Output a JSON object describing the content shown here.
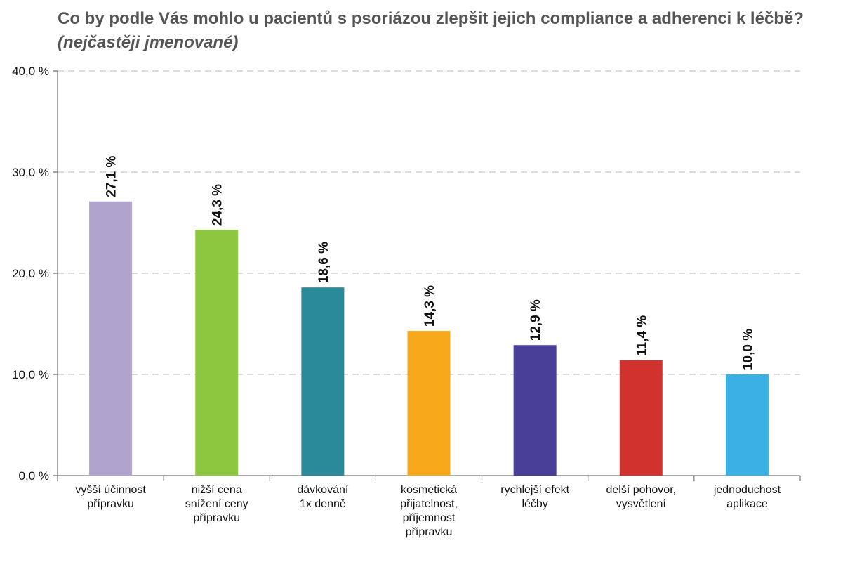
{
  "title": {
    "main": "Co by podle Vás mohlo u pacientů s psoriázou zlepšit jejich compliance a adherenci k léčbě?",
    "qualifier": "(nejčastěji jmenované)"
  },
  "chart_data": {
    "type": "bar",
    "title": "Co by podle Vás mohlo u pacientů s psoriázou zlepšit jejich compliance a adherenci k léčbě? (nejčastěji jmenované)",
    "xlabel": "",
    "ylabel": "",
    "ylim": [
      0,
      40
    ],
    "yticks": [
      0,
      10,
      20,
      30,
      40
    ],
    "ytick_labels": [
      "0,0 %",
      "10,0 %",
      "20,0 %",
      "30,0 %",
      "40,0 %"
    ],
    "grid": "horizontal dashed",
    "categories": [
      [
        "vyšší účinnost",
        "přípravku"
      ],
      [
        "nižší cena",
        "snížení ceny",
        "přípravku"
      ],
      [
        "dávkování",
        "1x denně"
      ],
      [
        "kosmetická",
        "přijatelnost,",
        "příjemnost",
        "přípravku"
      ],
      [
        "rychlejší efekt",
        "léčby"
      ],
      [
        "delší pohovor,",
        "vysvětlení"
      ],
      [
        "jednoduchost",
        "aplikace"
      ]
    ],
    "values": [
      27.1,
      24.3,
      18.6,
      14.3,
      12.9,
      11.4,
      10.0
    ],
    "value_labels": [
      "27,1 %",
      "24,3 %",
      "18,6 %",
      "14,3 %",
      "12,9 %",
      "11,4 %",
      "10,0 %"
    ],
    "colors": [
      "#b0a4cf",
      "#8dc63f",
      "#2b8a99",
      "#f7a81b",
      "#4a3f98",
      "#d2322d",
      "#3bb0e4"
    ]
  }
}
